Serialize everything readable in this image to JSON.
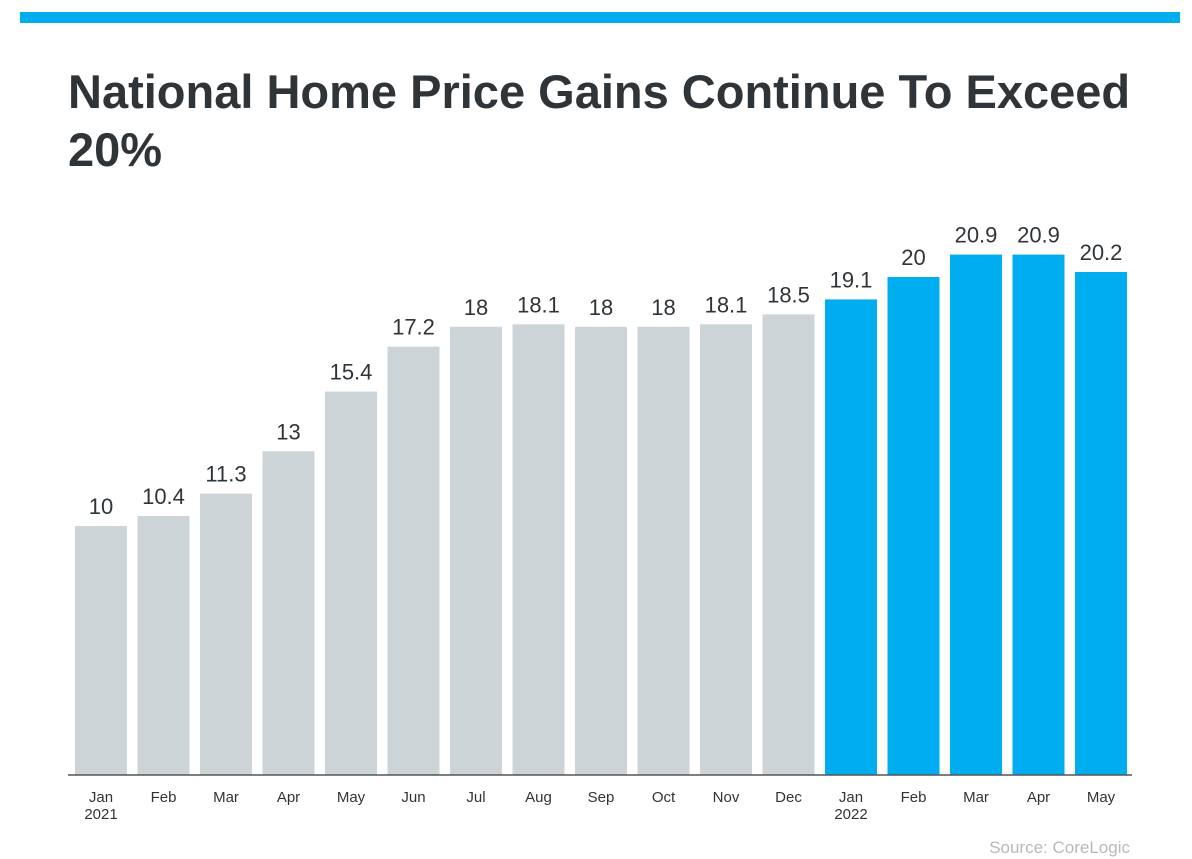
{
  "title": "National Home Price Gains Continue To Exceed 20%",
  "source": "Source: CoreLogic",
  "colors": {
    "accent": "#00aeef",
    "past": "#ccd4d8",
    "axis": "#555555",
    "text": "#2f3438"
  },
  "chart_data": {
    "type": "bar",
    "title": "National Home Price Gains Continue To Exceed 20%",
    "categories": [
      "Jan",
      "Feb",
      "Mar",
      "Apr",
      "May",
      "Jun",
      "Jul",
      "Aug",
      "Sep",
      "Oct",
      "Nov",
      "Dec",
      "Jan",
      "Feb",
      "Mar",
      "Apr",
      "May"
    ],
    "years": [
      "2021",
      "",
      "",
      "",
      "",
      "",
      "",
      "",
      "",
      "",
      "",
      "",
      "2022",
      "",
      "",
      "",
      ""
    ],
    "values": [
      10,
      10.4,
      11.3,
      13,
      15.4,
      17.2,
      18,
      18.1,
      18,
      18,
      18.1,
      18.5,
      19.1,
      20,
      20.9,
      20.9,
      20.2
    ],
    "labels": [
      "10",
      "10.4",
      "11.3",
      "13",
      "15.4",
      "17.2",
      "18",
      "18.1",
      "18",
      "18",
      "18.1",
      "18.5",
      "19.1",
      "20",
      "20.9",
      "20.9",
      "20.2"
    ],
    "highlight": [
      false,
      false,
      false,
      false,
      false,
      false,
      false,
      false,
      false,
      false,
      false,
      false,
      true,
      true,
      true,
      true,
      true
    ],
    "xlabel": "",
    "ylabel": "",
    "ylim": [
      0,
      21
    ],
    "grid": false,
    "legend": "none"
  }
}
